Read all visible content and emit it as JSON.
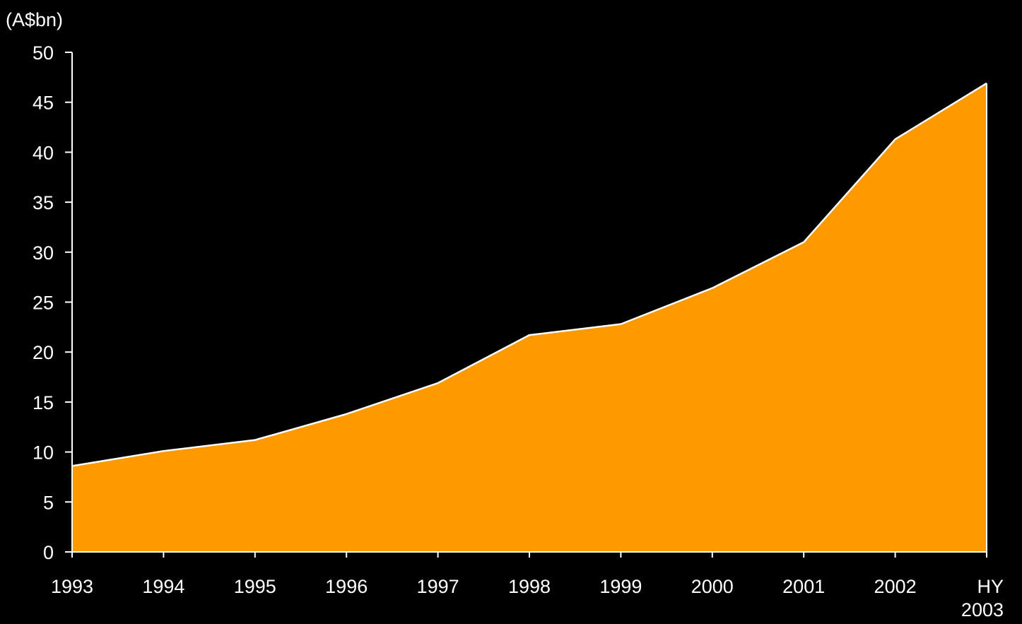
{
  "chart_data": {
    "type": "area",
    "title": "",
    "xlabel": "",
    "ylabel": "(A$bn)",
    "categories": [
      "1993",
      "1994",
      "1995",
      "1996",
      "1997",
      "1998",
      "1999",
      "2000",
      "2001",
      "2002",
      "HY 2003"
    ],
    "category_lines": [
      [
        "1993"
      ],
      [
        "1994"
      ],
      [
        "1995"
      ],
      [
        "1996"
      ],
      [
        "1997"
      ],
      [
        "1998"
      ],
      [
        "1999"
      ],
      [
        "2000"
      ],
      [
        "2001"
      ],
      [
        "2002"
      ],
      [
        "HY",
        "2003"
      ]
    ],
    "values": [
      8.6,
      10.1,
      11.2,
      13.8,
      16.9,
      21.7,
      22.8,
      26.4,
      31.0,
      41.3,
      46.9
    ],
    "ylim": [
      0,
      50
    ],
    "yticks": [
      0,
      5,
      10,
      15,
      20,
      25,
      30,
      35,
      40,
      45,
      50
    ],
    "grid": false,
    "legend": "none",
    "colors": {
      "fill": "#FF9900",
      "line": "#FFFFFF",
      "axis": "#FFFFFF",
      "background": "#000000"
    }
  }
}
